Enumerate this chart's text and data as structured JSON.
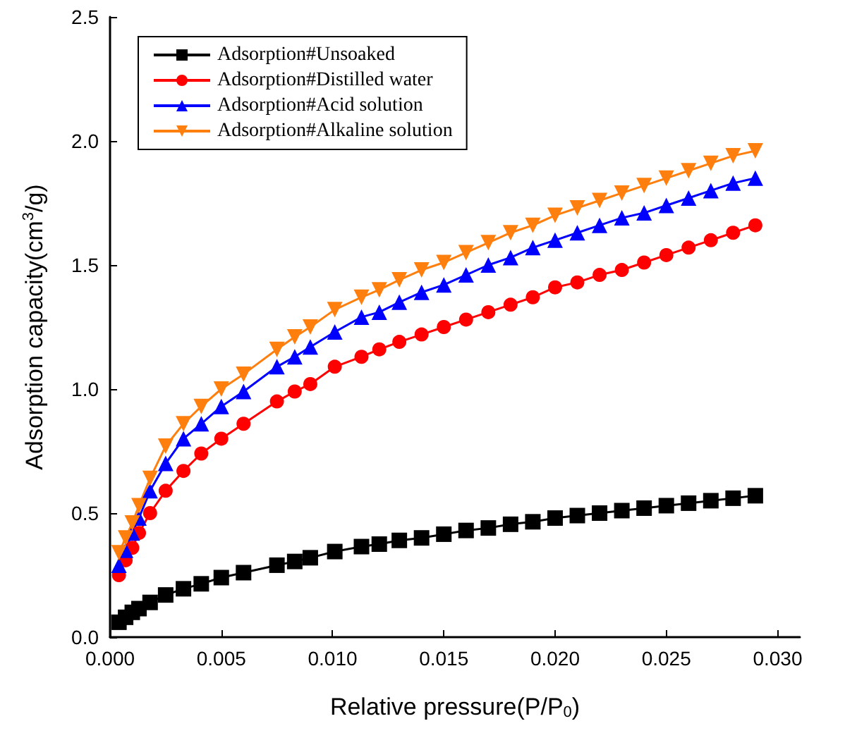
{
  "chart_data": {
    "type": "line",
    "xlabel": "Relative pressure(P/P$_{0}$)",
    "ylabel": "Adsorption capacity(cm$^{3}$/g)",
    "x": [
      0.0004,
      0.0007,
      0.001,
      0.0013,
      0.0018,
      0.0025,
      0.0033,
      0.0041,
      0.005,
      0.006,
      0.0075,
      0.0083,
      0.009,
      0.0101,
      0.0113,
      0.0121,
      0.013,
      0.014,
      0.015,
      0.016,
      0.017,
      0.018,
      0.019,
      0.02,
      0.021,
      0.022,
      0.023,
      0.024,
      0.025,
      0.026,
      0.027,
      0.028,
      0.029
    ],
    "series": [
      {
        "name": "Adsorption#Unsoaked",
        "color": "#000000",
        "marker": "square",
        "values": [
          0.06,
          0.08,
          0.1,
          0.115,
          0.14,
          0.17,
          0.195,
          0.215,
          0.24,
          0.26,
          0.29,
          0.305,
          0.32,
          0.345,
          0.365,
          0.375,
          0.39,
          0.4,
          0.415,
          0.43,
          0.44,
          0.455,
          0.465,
          0.48,
          0.49,
          0.5,
          0.51,
          0.52,
          0.53,
          0.54,
          0.55,
          0.56,
          0.57
        ]
      },
      {
        "name": "Adsorption#Distilled water",
        "color": "#ff0000",
        "marker": "circle",
        "values": [
          0.25,
          0.31,
          0.36,
          0.42,
          0.5,
          0.59,
          0.67,
          0.74,
          0.8,
          0.86,
          0.95,
          0.99,
          1.02,
          1.09,
          1.13,
          1.16,
          1.19,
          1.22,
          1.25,
          1.28,
          1.31,
          1.34,
          1.37,
          1.41,
          1.43,
          1.46,
          1.48,
          1.51,
          1.54,
          1.57,
          1.6,
          1.63,
          1.66
        ]
      },
      {
        "name": "Adsorption#Acid solution",
        "color": "#0000ff",
        "marker": "triangle",
        "values": [
          0.29,
          0.35,
          0.42,
          0.48,
          0.59,
          0.7,
          0.8,
          0.86,
          0.93,
          0.99,
          1.09,
          1.13,
          1.17,
          1.23,
          1.29,
          1.31,
          1.35,
          1.39,
          1.42,
          1.46,
          1.5,
          1.53,
          1.57,
          1.6,
          1.63,
          1.66,
          1.69,
          1.71,
          1.74,
          1.77,
          1.8,
          1.83,
          1.85
        ]
      },
      {
        "name": "Adsorption#Alkaline solution",
        "color": "#ff7f0e",
        "marker": "triangle-down",
        "values": [
          0.34,
          0.4,
          0.46,
          0.53,
          0.64,
          0.77,
          0.86,
          0.93,
          1.0,
          1.06,
          1.16,
          1.21,
          1.25,
          1.32,
          1.37,
          1.4,
          1.44,
          1.48,
          1.51,
          1.55,
          1.59,
          1.63,
          1.66,
          1.7,
          1.73,
          1.76,
          1.79,
          1.82,
          1.85,
          1.88,
          1.91,
          1.94,
          1.96
        ]
      }
    ],
    "xlim": [
      0,
      0.031
    ],
    "xticks": [
      {
        "value": 0,
        "label": "0.000"
      },
      {
        "value": 0.005,
        "label": "0.005"
      },
      {
        "value": 0.01,
        "label": "0.010"
      },
      {
        "value": 0.015,
        "label": "0.015"
      },
      {
        "value": 0.02,
        "label": "0.020"
      },
      {
        "value": 0.025,
        "label": "0.025"
      },
      {
        "value": 0.03,
        "label": "0.030"
      }
    ],
    "ylim": [
      0,
      2.5
    ],
    "yticks": [
      {
        "value": 0,
        "label": "0.0"
      },
      {
        "value": 0.5,
        "label": "0.5"
      },
      {
        "value": 1,
        "label": "1.0"
      },
      {
        "value": 1.5,
        "label": "1.5"
      },
      {
        "value": 2,
        "label": "2.0"
      },
      {
        "value": 2.5,
        "label": "2.5"
      }
    ],
    "legend": "top left",
    "grid": false,
    "line_style": "solid"
  }
}
